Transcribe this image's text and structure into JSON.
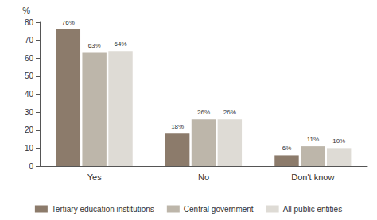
{
  "chart_data": {
    "type": "bar",
    "ylabel": "%",
    "categories": [
      "Yes",
      "No",
      "Don't know"
    ],
    "series": [
      {
        "name": "Tertiary education institutions",
        "color": "#8c7b6b",
        "values": [
          76,
          18,
          6
        ],
        "value_labels": [
          "76%",
          "18%",
          "6%"
        ]
      },
      {
        "name": "Central government",
        "color": "#bdb6aa",
        "values": [
          63,
          26,
          11
        ],
        "value_labels": [
          "63%",
          "26%",
          "11%"
        ]
      },
      {
        "name": "All public entities",
        "color": "#dedbd5",
        "values": [
          64,
          26,
          10
        ],
        "value_labels": [
          "64%",
          "26%",
          "10%"
        ]
      }
    ],
    "ylim": [
      0,
      80
    ],
    "yticks": [
      0,
      10,
      20,
      30,
      40,
      50,
      60,
      70,
      80
    ],
    "grid": false,
    "legend": "bottom",
    "data_labels": true
  }
}
